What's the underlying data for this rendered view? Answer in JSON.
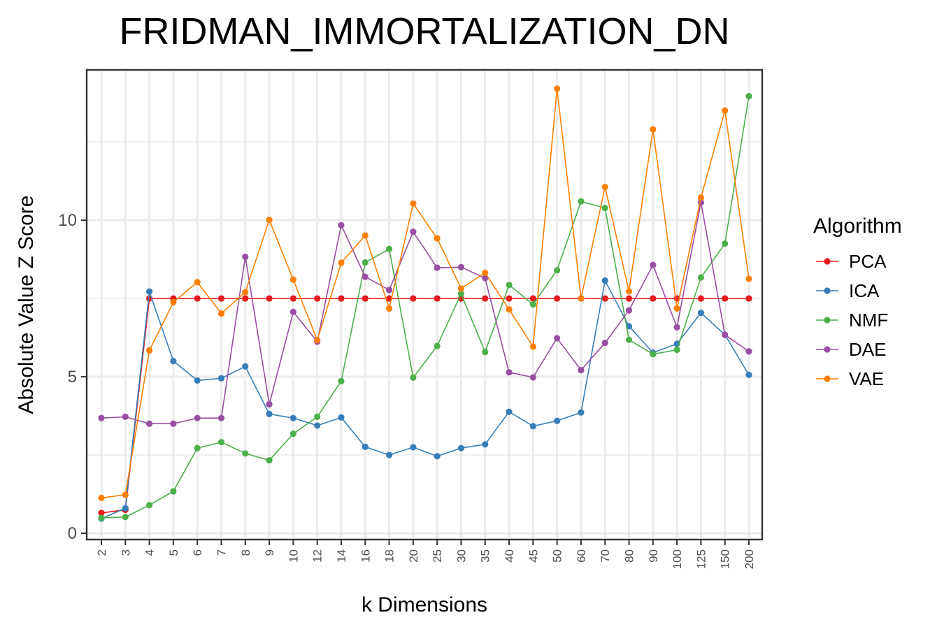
{
  "chart_data": {
    "type": "line",
    "title": "FRIDMAN_IMMORTALIZATION_DN",
    "xlabel": "k Dimensions",
    "ylabel": "Absolute Value Z Score",
    "categories": [
      "2",
      "3",
      "4",
      "5",
      "6",
      "7",
      "8",
      "9",
      "10",
      "12",
      "14",
      "16",
      "18",
      "20",
      "25",
      "30",
      "35",
      "40",
      "45",
      "50",
      "60",
      "70",
      "80",
      "90",
      "100",
      "125",
      "150",
      "200"
    ],
    "yticks": [
      0,
      5,
      10
    ],
    "ylim": [
      -0.2,
      14.8
    ],
    "grid": true,
    "legend": {
      "title": "Algorithm",
      "position": "right"
    },
    "series": [
      {
        "name": "PCA",
        "color": "#e41a1c",
        "values": [
          0.65,
          0.75,
          7.5,
          7.5,
          7.5,
          7.5,
          7.5,
          7.5,
          7.5,
          7.5,
          7.5,
          7.5,
          7.5,
          7.5,
          7.5,
          7.5,
          7.5,
          7.5,
          7.5,
          7.5,
          7.5,
          7.5,
          7.5,
          7.5,
          7.5,
          7.5,
          7.5,
          7.5
        ]
      },
      {
        "name": "ICA",
        "color": "#377eb8",
        "values": [
          0.47,
          0.8,
          7.72,
          5.5,
          4.88,
          4.95,
          5.33,
          3.81,
          3.68,
          3.44,
          3.7,
          2.76,
          2.5,
          2.75,
          2.46,
          2.72,
          2.84,
          3.88,
          3.42,
          3.59,
          3.86,
          8.07,
          6.61,
          5.77,
          6.05,
          7.04,
          6.34,
          5.06
        ]
      },
      {
        "name": "NMF",
        "color": "#4daf4a",
        "values": [
          0.49,
          0.52,
          0.9,
          1.34,
          2.72,
          2.91,
          2.55,
          2.33,
          3.18,
          3.72,
          4.86,
          8.65,
          9.08,
          4.97,
          5.98,
          7.65,
          5.79,
          7.93,
          7.31,
          8.4,
          10.6,
          10.39,
          6.18,
          5.72,
          5.86,
          8.17,
          9.25,
          13.96
        ]
      },
      {
        "name": "DAE",
        "color": "#984ea3",
        "values": [
          3.68,
          3.72,
          3.5,
          3.5,
          3.68,
          3.68,
          8.83,
          4.12,
          7.07,
          6.12,
          9.84,
          8.19,
          7.77,
          9.63,
          8.48,
          8.5,
          8.15,
          5.14,
          4.98,
          6.23,
          5.21,
          6.08,
          7.12,
          8.57,
          6.58,
          10.57,
          6.34,
          5.81
        ]
      },
      {
        "name": "VAE",
        "color": "#ff7f00",
        "values": [
          1.13,
          1.23,
          5.84,
          7.38,
          8.02,
          7.02,
          7.7,
          10.01,
          8.1,
          6.17,
          8.64,
          9.51,
          7.18,
          10.53,
          9.42,
          7.82,
          8.32,
          7.15,
          5.96,
          14.2,
          7.5,
          11.06,
          7.73,
          12.9,
          7.18,
          10.72,
          13.5,
          8.13
        ]
      }
    ]
  }
}
